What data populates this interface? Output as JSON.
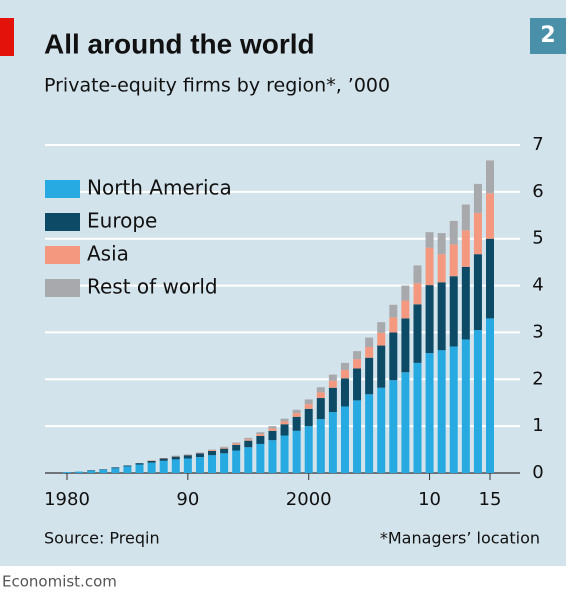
{
  "chart_data": {
    "type": "bar",
    "stacked": true,
    "title": "All around the world",
    "subtitle": "Private-equity firms by region*, ’000",
    "badge": "2",
    "source": "Source: Preqin",
    "footnote": "*Managers’ location",
    "credit": "Economist.com",
    "x": [
      1980,
      1981,
      1982,
      1983,
      1984,
      1985,
      1986,
      1987,
      1988,
      1989,
      1990,
      1991,
      1992,
      1993,
      1994,
      1995,
      1996,
      1997,
      1998,
      1999,
      2000,
      2001,
      2002,
      2003,
      2004,
      2005,
      2006,
      2007,
      2008,
      2009,
      2010,
      2011,
      2012,
      2013,
      2014,
      2015
    ],
    "xlim": [
      1979,
      2016
    ],
    "xticks": [
      1980,
      {
        "value": 1990,
        "label": "90"
      },
      2000,
      {
        "value": 2010,
        "label": "10"
      },
      {
        "value": 2015,
        "label": "15"
      }
    ],
    "ylim": [
      0,
      7
    ],
    "yticks": [
      0,
      1,
      2,
      3,
      4,
      5,
      6,
      7
    ],
    "grid": true,
    "legend": "upper left",
    "series": [
      {
        "name": "North America",
        "color": "#27a9e1",
        "values": [
          0.02,
          0.03,
          0.05,
          0.07,
          0.1,
          0.14,
          0.18,
          0.22,
          0.26,
          0.29,
          0.31,
          0.34,
          0.38,
          0.42,
          0.48,
          0.55,
          0.62,
          0.7,
          0.8,
          0.9,
          1.0,
          1.15,
          1.3,
          1.42,
          1.55,
          1.68,
          1.82,
          1.98,
          2.15,
          2.35,
          2.56,
          2.62,
          2.7,
          2.85,
          3.05,
          3.3
        ]
      },
      {
        "name": "Europe",
        "color": "#0c4a66",
        "values": [
          0,
          0,
          0.01,
          0.01,
          0.02,
          0.02,
          0.03,
          0.04,
          0.05,
          0.06,
          0.07,
          0.08,
          0.09,
          0.1,
          0.12,
          0.14,
          0.17,
          0.2,
          0.24,
          0.3,
          0.37,
          0.45,
          0.52,
          0.6,
          0.68,
          0.78,
          0.9,
          1.02,
          1.15,
          1.25,
          1.45,
          1.45,
          1.5,
          1.55,
          1.62,
          1.7
        ]
      },
      {
        "name": "Asia",
        "color": "#f4997f",
        "values": [
          0,
          0,
          0,
          0,
          0,
          0,
          0,
          0.01,
          0.01,
          0.01,
          0.01,
          0.01,
          0.02,
          0.02,
          0.03,
          0.03,
          0.04,
          0.05,
          0.06,
          0.08,
          0.1,
          0.12,
          0.15,
          0.18,
          0.2,
          0.23,
          0.27,
          0.32,
          0.38,
          0.45,
          0.8,
          0.6,
          0.68,
          0.78,
          0.88,
          0.97
        ]
      },
      {
        "name": "Rest of world",
        "color": "#a7a9ac",
        "values": [
          0,
          0,
          0,
          0,
          0,
          0,
          0,
          0,
          0,
          0.01,
          0.01,
          0.01,
          0.01,
          0.02,
          0.02,
          0.03,
          0.04,
          0.05,
          0.06,
          0.07,
          0.1,
          0.11,
          0.13,
          0.15,
          0.17,
          0.2,
          0.23,
          0.27,
          0.32,
          0.38,
          0.33,
          0.45,
          0.5,
          0.55,
          0.62,
          0.7
        ]
      }
    ]
  }
}
